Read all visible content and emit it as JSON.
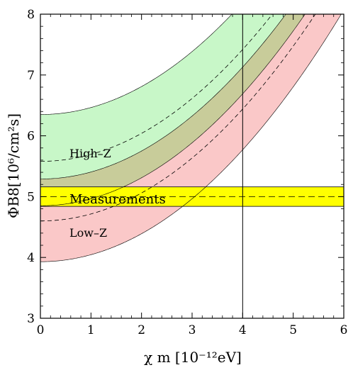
{
  "chart_data": {
    "type": "area",
    "xlabel": "χ m [10⁻¹²eV]",
    "ylabel": "ΦB8[10⁶/cm²s]",
    "xlim": [
      0,
      6
    ],
    "ylim": [
      3,
      8
    ],
    "xticks": [
      "0",
      "1",
      "2",
      "3",
      "4",
      "5",
      "6"
    ],
    "yticks": [
      "3",
      "4",
      "5",
      "6",
      "7",
      "8"
    ],
    "grid": false,
    "vline_x": 4,
    "measurement": {
      "label": "Measurements",
      "center": 5.0,
      "lower": 4.84,
      "upper": 5.16
    },
    "bands": [
      {
        "label": "High–Z",
        "color": "#c8f7c8",
        "y0_lower": 4.85,
        "y0_center": 5.58,
        "y0_upper": 6.35,
        "curvature": 0.115
      },
      {
        "label": "Low–Z",
        "color": "#fac8c8",
        "y0_lower": 3.93,
        "y0_center": 4.6,
        "y0_upper": 5.29,
        "curvature": 0.115
      }
    ],
    "overlap_color": "#c8cc9a"
  }
}
